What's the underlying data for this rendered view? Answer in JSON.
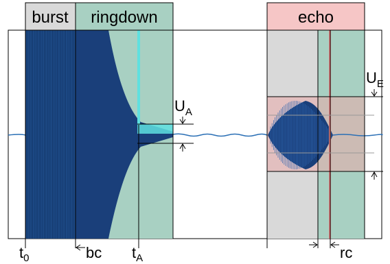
{
  "regions": {
    "burst": {
      "label": "burst",
      "header_color": "#d9d9d9",
      "fill_color": "#1f4e8c"
    },
    "ringdown": {
      "label": "ringdown",
      "header_color": "#a8d0c2",
      "fill_color": "#a8d0c2"
    },
    "echo": {
      "label": "echo",
      "header_color": "#f6c6c6",
      "fill_color": "#d9d9d9"
    }
  },
  "bottom_labels": {
    "t0": {
      "main": "t",
      "sub": "0"
    },
    "bc": {
      "main": "bc"
    },
    "tA": {
      "main": "t",
      "sub": "A"
    },
    "rc": {
      "main": "rc"
    }
  },
  "thresholds": {
    "UA": {
      "main": "U",
      "sub": "A"
    },
    "UE": {
      "main": "U",
      "sub": "E"
    }
  },
  "colors": {
    "signal": "#1a3f7a",
    "marker_cyan": "#5fe0e0",
    "marker_red": "#e08080",
    "echo_box": "#e9a9a9",
    "baseline": "#2a6fb5"
  }
}
